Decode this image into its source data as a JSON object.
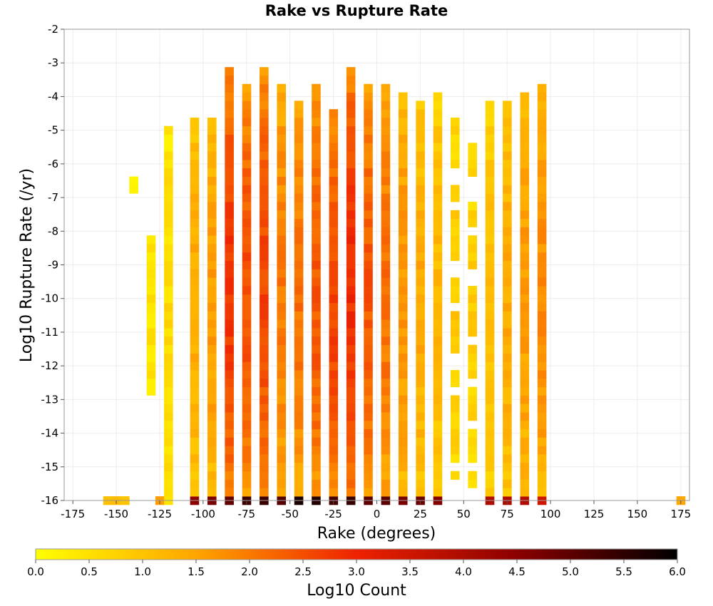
{
  "chart_data": {
    "type": "heatmap",
    "title": "Rake vs Rupture Rate",
    "xlabel": "Rake (degrees)",
    "ylabel": "Log10 Rupture Rate (/yr)",
    "xlim": [
      -180,
      180
    ],
    "ylim": [
      -16,
      -2
    ],
    "x_ticks": [
      "-175",
      "-150",
      "-125",
      "-100",
      "-75",
      "-50",
      "-25",
      "0",
      "25",
      "50",
      "75",
      "100",
      "125",
      "150",
      "175"
    ],
    "y_ticks": [
      "-2",
      "-3",
      "-4",
      "-5",
      "-6",
      "-7",
      "-8",
      "-9",
      "-10",
      "-11",
      "-12",
      "-13",
      "-14",
      "-15",
      "-16"
    ],
    "x_bin_width": 5,
    "y_bin_width": 0.25,
    "grid": true,
    "colorbar": {
      "label": "Log10 Count",
      "min": 0.0,
      "max": 6.0,
      "ticks": [
        "0.0",
        "0.5",
        "1.0",
        "1.5",
        "2.0",
        "2.5",
        "3.0",
        "3.5",
        "4.0",
        "4.5",
        "5.0",
        "5.5",
        "6.0"
      ],
      "color_stops": [
        "#ffff00",
        "#ffa500",
        "#ee2200",
        "#8b0000",
        "#000000"
      ]
    },
    "columns": [
      {
        "rake": -155,
        "count_range": [
          -16,
          -16
        ],
        "peak_log_count": 1.3
      },
      {
        "rake": -150,
        "count_range": [
          -16,
          -16
        ],
        "peak_log_count": 0.9
      },
      {
        "rake": -145,
        "count_range": [
          -16,
          -16
        ],
        "peak_log_count": 1.2
      },
      {
        "rake": -140,
        "count_range": [
          -6.75,
          -6.5
        ],
        "peak_log_count": 0.2
      },
      {
        "rake": -130,
        "count_range": [
          -12.75,
          -8.25
        ],
        "peak_log_count": 0.5
      },
      {
        "rake": -125,
        "count_range": [
          -16,
          -16
        ],
        "peak_log_count": 1.6
      },
      {
        "rake": -120,
        "count_range": [
          -16,
          -5.0
        ],
        "peak_log_count": 0.6
      },
      {
        "rake": -105,
        "count_range": [
          -16,
          -4.75
        ],
        "peak_log_count": 1.4
      },
      {
        "rake": -95,
        "count_range": [
          -16,
          -4.75
        ],
        "peak_log_count": 1.6
      },
      {
        "rake": -85,
        "count_range": [
          -16,
          -3.25
        ],
        "peak_log_count": 2.8
      },
      {
        "rake": -75,
        "count_range": [
          -16,
          -3.75
        ],
        "peak_log_count": 2.5
      },
      {
        "rake": -65,
        "count_range": [
          -16,
          -3.25
        ],
        "peak_log_count": 2.6
      },
      {
        "rake": -55,
        "count_range": [
          -16,
          -3.75
        ],
        "peak_log_count": 2.0
      },
      {
        "rake": -45,
        "count_range": [
          -16,
          -4.25
        ],
        "peak_log_count": 2.1
      },
      {
        "rake": -35,
        "count_range": [
          -16,
          -3.75
        ],
        "peak_log_count": 2.4
      },
      {
        "rake": -25,
        "count_range": [
          -16,
          -4.5
        ],
        "peak_log_count": 2.6
      },
      {
        "rake": -15,
        "count_range": [
          -16,
          -3.25
        ],
        "peak_log_count": 2.9
      },
      {
        "rake": -5,
        "count_range": [
          -16,
          -3.75
        ],
        "peak_log_count": 2.4
      },
      {
        "rake": 5,
        "count_range": [
          -16,
          -3.75
        ],
        "peak_log_count": 2.1
      },
      {
        "rake": 15,
        "count_range": [
          -16,
          -4.0
        ],
        "peak_log_count": 1.7
      },
      {
        "rake": 25,
        "count_range": [
          -16,
          -4.25
        ],
        "peak_log_count": 1.4
      },
      {
        "rake": 35,
        "count_range": [
          -16,
          -4.0
        ],
        "peak_log_count": 1.2
      },
      {
        "rake": 45,
        "count_range": [
          -15.25,
          -4.75
        ],
        "peak_log_count": 0.9
      },
      {
        "rake": 55,
        "count_range": [
          -15.5,
          -5.5
        ],
        "peak_log_count": 0.8
      },
      {
        "rake": 65,
        "count_range": [
          -16,
          -4.25
        ],
        "peak_log_count": 1.1
      },
      {
        "rake": 75,
        "count_range": [
          -16,
          -4.25
        ],
        "peak_log_count": 1.4
      },
      {
        "rake": 85,
        "count_range": [
          -16,
          -4.0
        ],
        "peak_log_count": 1.6
      },
      {
        "rake": 95,
        "count_range": [
          -16,
          -3.75
        ],
        "peak_log_count": 1.8
      },
      {
        "rake": 175,
        "count_range": [
          -16,
          -16
        ],
        "peak_log_count": 1.6
      }
    ],
    "bottom_row_log10_rate": -16,
    "bottom_row_peak_log_count": 5.5
  }
}
